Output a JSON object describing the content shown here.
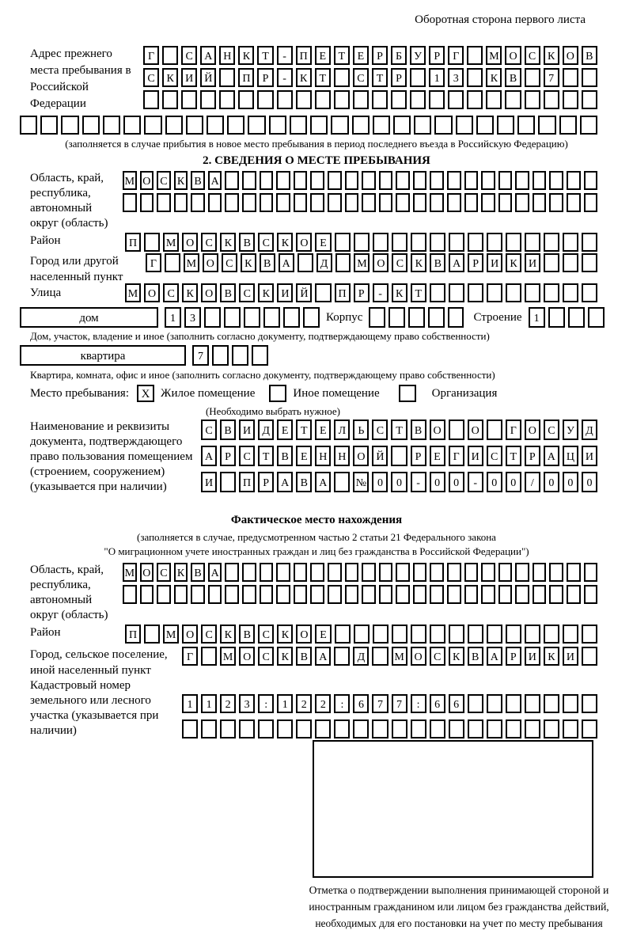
{
  "page": {
    "side_note": "Оборотная сторона первого листа"
  },
  "prev_address": {
    "label": "Адрес прежнего места пребывания в Российской Федерации",
    "row1": [
      "Г",
      "",
      "С",
      "А",
      "Н",
      "К",
      "Т",
      "-",
      "П",
      "Е",
      "Т",
      "Е",
      "Р",
      "Б",
      "У",
      "Р",
      "Г",
      "",
      "М",
      "О",
      "С",
      "К",
      "О",
      "В"
    ],
    "row2": [
      "С",
      "К",
      "И",
      "Й",
      "",
      "П",
      "Р",
      "-",
      "К",
      "Т",
      "",
      "С",
      "Т",
      "Р",
      "",
      "1",
      "3",
      "",
      "К",
      "В",
      "",
      "7",
      "",
      ""
    ],
    "row3": [
      "",
      "",
      "",
      "",
      "",
      "",
      "",
      "",
      "",
      "",
      "",
      "",
      "",
      "",
      "",
      "",
      "",
      "",
      "",
      "",
      "",
      "",
      "",
      ""
    ],
    "row4": [
      "",
      "",
      "",
      "",
      "",
      "",
      "",
      "",
      "",
      "",
      "",
      "",
      "",
      "",
      "",
      "",
      "",
      "",
      "",
      "",
      "",
      "",
      "",
      "",
      "",
      "",
      "",
      ""
    ],
    "note": "(заполняется в случае прибытия в новое место пребывания в период последнего въезда в Российскую Федерацию)"
  },
  "section2": {
    "title": "2. СВЕДЕНИЯ О МЕСТЕ ПРЕБЫВАНИЯ",
    "region": {
      "label": "Область, край, республика, автономный округ (область)",
      "row1": [
        "М",
        "О",
        "С",
        "К",
        "В",
        "А",
        "",
        "",
        "",
        "",
        "",
        "",
        "",
        "",
        "",
        "",
        "",
        "",
        "",
        "",
        "",
        "",
        "",
        "",
        "",
        "",
        "",
        ""
      ],
      "row2": [
        "",
        "",
        "",
        "",
        "",
        "",
        "",
        "",
        "",
        "",
        "",
        "",
        "",
        "",
        "",
        "",
        "",
        "",
        "",
        "",
        "",
        "",
        "",
        "",
        "",
        "",
        "",
        ""
      ]
    },
    "district": {
      "label": "Район",
      "row": [
        "П",
        "",
        "М",
        "О",
        "С",
        "К",
        "В",
        "С",
        "К",
        "О",
        "Е",
        "",
        "",
        "",
        "",
        "",
        "",
        "",
        "",
        "",
        "",
        "",
        "",
        "",
        ""
      ]
    },
    "city": {
      "label": "Город или другой населенный пункт",
      "row": [
        "Г",
        "",
        "М",
        "О",
        "С",
        "К",
        "В",
        "А",
        "",
        "Д",
        "",
        "М",
        "О",
        "С",
        "К",
        "В",
        "А",
        "Р",
        "И",
        "К",
        "И",
        "",
        "",
        ""
      ]
    },
    "street": {
      "label": "Улица",
      "row": [
        "М",
        "О",
        "С",
        "К",
        "О",
        "В",
        "С",
        "К",
        "И",
        "Й",
        "",
        "П",
        "Р",
        "-",
        "К",
        "Т",
        "",
        "",
        "",
        "",
        "",
        "",
        "",
        "",
        ""
      ]
    },
    "house": {
      "label": "дом",
      "boxes": [
        "1",
        "3",
        "",
        "",
        "",
        "",
        "",
        ""
      ],
      "korpus_label": "Корпус",
      "korpus_boxes": [
        "",
        "",
        "",
        "",
        ""
      ],
      "stroenie_label": "Строение",
      "stroenie_boxes": [
        "1",
        "",
        "",
        ""
      ],
      "note": "Дом, участок, владение и иное (заполнить согласно документу, подтверждающему право собственности)"
    },
    "apartment": {
      "label": "квартира",
      "boxes": [
        "7",
        "",
        "",
        ""
      ],
      "note": "Квартира, комната, офис и иное (заполнить согласно документу, подтверждающему право собственности)"
    },
    "stay_type": {
      "label": "Место пребывания:",
      "options": [
        {
          "label": "Жилое помещение",
          "mark": "X"
        },
        {
          "label": "Иное помещение",
          "mark": ""
        },
        {
          "label": "Организация",
          "mark": ""
        }
      ],
      "note": "(Необходимо выбрать нужное)"
    },
    "document": {
      "label": "Наименование и реквизиты документа, подтверждающего право пользования помещением (строением, сооружением) (указывается при наличии)",
      "row1": [
        "С",
        "В",
        "И",
        "Д",
        "Е",
        "Т",
        "Е",
        "Л",
        "Ь",
        "С",
        "Т",
        "В",
        "О",
        "",
        "О",
        "",
        "Г",
        "О",
        "С",
        "У",
        "Д"
      ],
      "row2": [
        "А",
        "Р",
        "С",
        "Т",
        "В",
        "Е",
        "Н",
        "Н",
        "О",
        "Й",
        "",
        "Р",
        "Е",
        "Г",
        "И",
        "С",
        "Т",
        "Р",
        "А",
        "Ц",
        "И"
      ],
      "row3": [
        "И",
        "",
        "П",
        "Р",
        "А",
        "В",
        "А",
        "",
        "№",
        "0",
        "0",
        "-",
        "0",
        "0",
        "-",
        "0",
        "0",
        "/",
        "0",
        "0",
        "0"
      ]
    }
  },
  "actual_location": {
    "title": "Фактическое место нахождения",
    "note1": "(заполняется в случае, предусмотренном частью 2 статьи 21 Федерального закона",
    "note2": "\"О миграционном учете иностранных граждан и лиц без гражданства в Российской Федерации\")",
    "region": {
      "label": "Область, край, республика, автономный округ (область)",
      "row1": [
        "М",
        "О",
        "С",
        "К",
        "В",
        "А",
        "",
        "",
        "",
        "",
        "",
        "",
        "",
        "",
        "",
        "",
        "",
        "",
        "",
        "",
        "",
        "",
        "",
        "",
        "",
        "",
        "",
        ""
      ],
      "row2": [
        "",
        "",
        "",
        "",
        "",
        "",
        "",
        "",
        "",
        "",
        "",
        "",
        "",
        "",
        "",
        "",
        "",
        "",
        "",
        "",
        "",
        "",
        "",
        "",
        "",
        "",
        "",
        ""
      ]
    },
    "district": {
      "label": "Район",
      "row": [
        "П",
        "",
        "М",
        "О",
        "С",
        "К",
        "В",
        "С",
        "К",
        "О",
        "Е",
        "",
        "",
        "",
        "",
        "",
        "",
        "",
        "",
        "",
        "",
        "",
        "",
        "",
        ""
      ]
    },
    "city": {
      "label": "Город, сельское поселение, иной населенный пункт",
      "row": [
        "Г",
        "",
        "М",
        "О",
        "С",
        "К",
        "В",
        "А",
        "",
        "Д",
        "",
        "М",
        "О",
        "С",
        "К",
        "В",
        "А",
        "Р",
        "И",
        "К",
        "И",
        ""
      ]
    },
    "cadastral": {
      "label": "Кадастровый номер земельного или лесного участка (указывается при наличии)",
      "row1": [
        "1",
        "1",
        "2",
        "3",
        ":",
        "1",
        "2",
        "2",
        ":",
        "6",
        "7",
        "7",
        ":",
        "6",
        "6",
        "",
        "",
        "",
        "",
        "",
        "",
        ""
      ],
      "row2": [
        "",
        "",
        "",
        "",
        "",
        "",
        "",
        "",
        "",
        "",
        "",
        "",
        "",
        "",
        "",
        "",
        "",
        "",
        "",
        "",
        "",
        ""
      ]
    },
    "stamp_caption": "Отметка о подтверждении выполнения принимающей стороной и иностранным гражданином или лицом без гражданства действий, необходимых для его постановки на учет по месту пребывания"
  }
}
